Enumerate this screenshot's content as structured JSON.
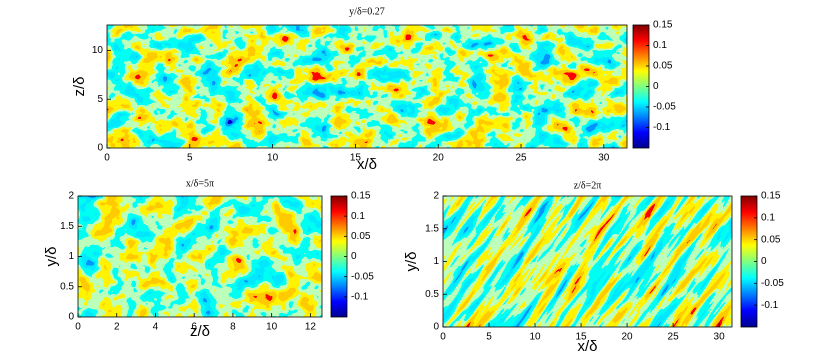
{
  "chart_data": [
    {
      "type": "contour",
      "title": "y/δ=0.27",
      "x_label": "x/δ",
      "y_label": "z/δ",
      "xlim": [
        0,
        31.4
      ],
      "xticks": [
        0,
        5,
        10,
        15,
        20,
        25,
        30
      ],
      "ylim": [
        0,
        12.6
      ],
      "yticks": [
        0,
        5,
        10
      ],
      "clim": [
        -0.15,
        0.15
      ],
      "cticks": [
        -0.1,
        -0.05,
        0,
        0.05,
        0.1,
        0.15
      ],
      "colormap": "jet"
    },
    {
      "type": "contour",
      "title": "x/δ=5π",
      "x_label": "z/δ",
      "y_label": "y/δ",
      "xlim": [
        0,
        12.6
      ],
      "xticks": [
        0,
        2,
        4,
        6,
        8,
        10,
        12
      ],
      "ylim": [
        0,
        2
      ],
      "yticks": [
        0,
        0.5,
        1,
        1.5,
        2
      ],
      "clim": [
        -0.15,
        0.15
      ],
      "cticks": [
        -0.1,
        -0.05,
        0,
        0.05,
        0.1,
        0.15
      ],
      "colormap": "jet"
    },
    {
      "type": "contour",
      "title": "z/δ=2π",
      "x_label": "x/δ",
      "y_label": "y/δ",
      "xlim": [
        0,
        31.4
      ],
      "xticks": [
        0,
        5,
        10,
        15,
        20,
        25,
        30
      ],
      "ylim": [
        0,
        2
      ],
      "yticks": [
        0,
        0.5,
        1,
        1.5,
        2
      ],
      "clim": [
        -0.15,
        0.15
      ],
      "cticks": [
        -0.1,
        -0.05,
        0,
        0.05,
        0.1,
        0.15
      ],
      "colormap": "jet"
    }
  ]
}
